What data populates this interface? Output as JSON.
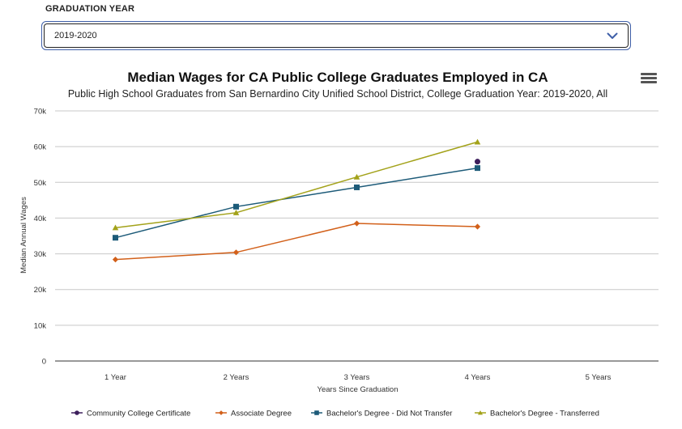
{
  "filter": {
    "label": "GRADUATION YEAR",
    "selected": "2019-2020",
    "icon": "chevron-down-icon"
  },
  "menu": {
    "icon": "hamburger-menu-icon"
  },
  "chart_data": {
    "type": "line",
    "title": "Median Wages for CA Public College Graduates Employed in CA",
    "subtitle": "Public High School Graduates from San Bernardino City Unified School District, College Graduation Year: 2019-2020, All",
    "xlabel": "Years Since Graduation",
    "ylabel": "Median Annual Wages",
    "categories": [
      "1 Year",
      "2 Years",
      "3 Years",
      "4 Years",
      "5 Years"
    ],
    "ylim": [
      0,
      70000
    ],
    "yticks": [
      0,
      10000,
      20000,
      30000,
      40000,
      50000,
      60000,
      70000
    ],
    "ytick_labels": [
      "0",
      "10k",
      "20k",
      "30k",
      "40k",
      "50k",
      "60k",
      "70k"
    ],
    "grid": true,
    "legend_position": "bottom",
    "series": [
      {
        "name": "Community College Certificate",
        "color": "#3d1f5c",
        "marker": "circle",
        "values": [
          null,
          null,
          null,
          55800,
          null
        ]
      },
      {
        "name": "Associate Degree",
        "color": "#d2601a",
        "marker": "diamond",
        "values": [
          28400,
          30400,
          38500,
          37600,
          null
        ]
      },
      {
        "name": "Bachelor's Degree - Did Not Transfer",
        "color": "#1d5b79",
        "marker": "square",
        "values": [
          34500,
          43200,
          48600,
          54000,
          null
        ]
      },
      {
        "name": "Bachelor's Degree - Transferred",
        "color": "#a3a21a",
        "marker": "triangle",
        "values": [
          37300,
          41500,
          51500,
          61300,
          null
        ]
      }
    ]
  }
}
